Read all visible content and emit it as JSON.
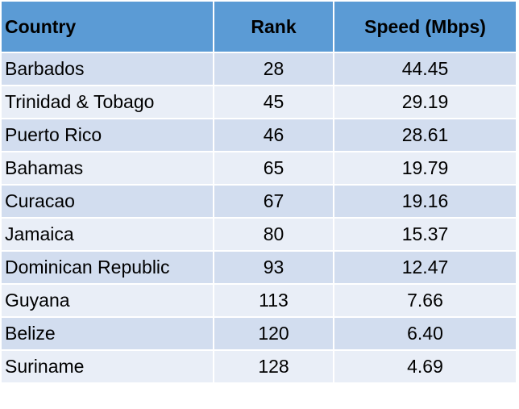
{
  "table": {
    "header": [
      "Country",
      "Rank",
      "Speed (Mbps)"
    ],
    "rows": [
      [
        "Barbados",
        "28",
        "44.45"
      ],
      [
        "Trinidad & Tobago",
        "45",
        "29.19"
      ],
      [
        "Puerto Rico",
        "46",
        "28.61"
      ],
      [
        "Bahamas",
        "65",
        "19.79"
      ],
      [
        "Curacao",
        "67",
        "19.16"
      ],
      [
        "Jamaica",
        "80",
        "15.37"
      ],
      [
        "Dominican Republic",
        "93",
        "12.47"
      ],
      [
        "Guyana",
        "113",
        "7.66"
      ],
      [
        "Belize",
        "120",
        "6.40"
      ],
      [
        "Suriname",
        "128",
        "4.69"
      ]
    ]
  }
}
